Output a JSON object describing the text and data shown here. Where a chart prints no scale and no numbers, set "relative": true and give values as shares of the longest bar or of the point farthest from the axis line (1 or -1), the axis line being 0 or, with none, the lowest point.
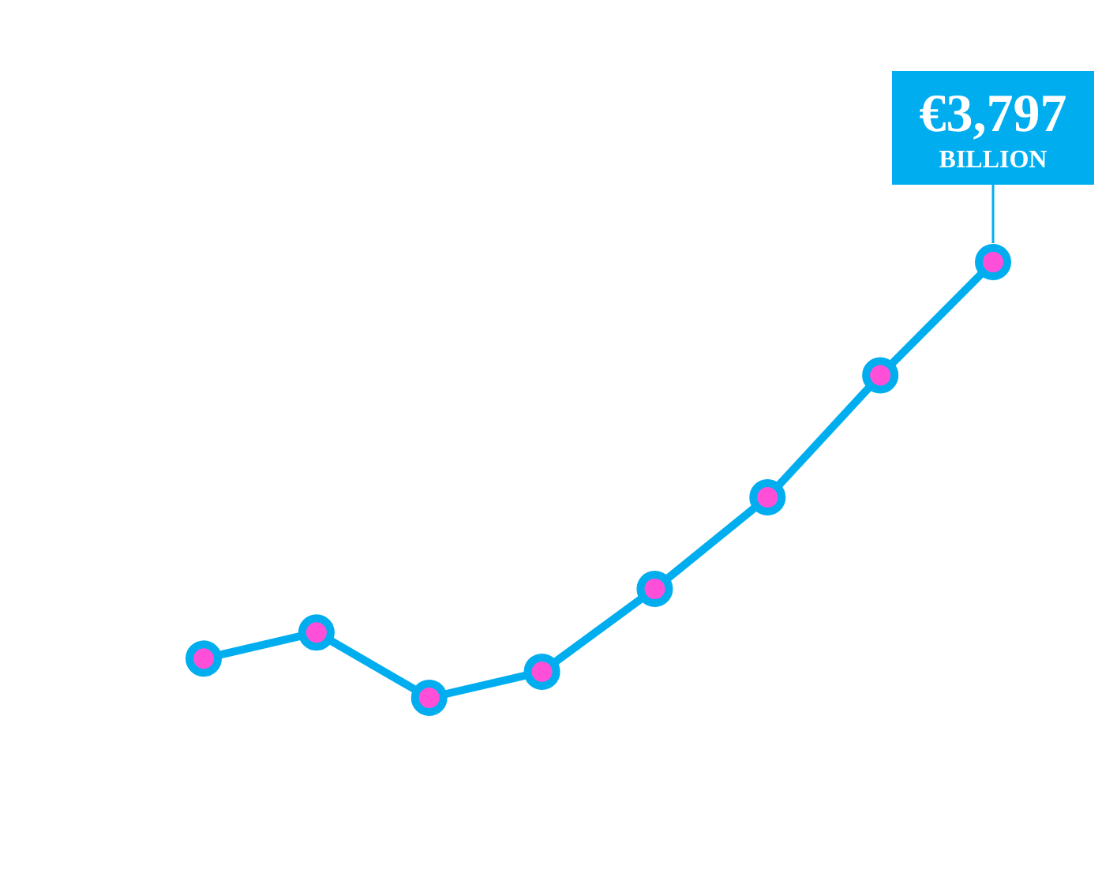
{
  "chart_data": {
    "type": "line",
    "relative": true,
    "categories": [
      null,
      null,
      null,
      null,
      null,
      null,
      null,
      null
    ],
    "series": [
      {
        "color": "#00aeef",
        "values": [
          0.09,
          0.15,
          0,
          0.06,
          0.25,
          0.46,
          0.74,
          1
        ]
      }
    ],
    "value_labels": [
      null,
      null,
      null,
      null,
      null,
      null,
      null,
      "€3,797 BILLION"
    ],
    "marker": "circle",
    "line_style": "solid",
    "legend": false
  }
}
